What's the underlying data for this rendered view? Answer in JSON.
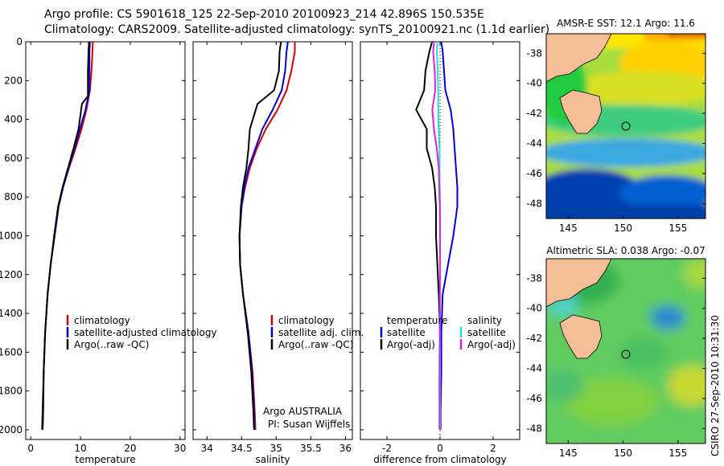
{
  "header": {
    "line1": "Argo profile: CS 5901618_125 22-Sep-2010 20100923_214 42.896S 150.535E",
    "line2": "Climatology: CARS2009. Satellite-adjusted climatology: synTS_20100921.nc (1.1d earlier)"
  },
  "side_stamp": "CSIRO 27-Sep-2010 10:31:30",
  "colors": {
    "climatology": "#dd0000",
    "satellite": "#0000dd",
    "argo": "#000000",
    "salinity_satellite": "#22dddd",
    "salinity_argo": "#dd22dd",
    "land": "#f4bf96"
  },
  "chart_data": [
    {
      "type": "line",
      "panel": "temperature",
      "xlabel": "temperature",
      "xlim": [
        -1,
        31
      ],
      "ylim": [
        2050,
        0
      ],
      "xticks": [
        "0",
        "10",
        "20",
        "30"
      ],
      "yticks": [
        "0",
        "200",
        "400",
        "600",
        "800",
        "1000",
        "1200",
        "1400",
        "1600",
        "1800",
        "2000"
      ],
      "legend": [
        "climatology",
        "satellite-adjusted climatology",
        "Argo(..raw -QC)"
      ],
      "series": [
        {
          "name": "climatology",
          "x": [
            12.5,
            12.4,
            12.2,
            11.9,
            11.2,
            10.2,
            9.0,
            7.7,
            6.5,
            5.6,
            4.8,
            4.0,
            3.4,
            2.9,
            2.6,
            2.5,
            2.4
          ],
          "y": [
            0,
            50,
            150,
            250,
            350,
            450,
            550,
            650,
            750,
            850,
            1000,
            1150,
            1300,
            1500,
            1700,
            1900,
            2000
          ]
        },
        {
          "name": "satellite-adjusted climatology",
          "x": [
            11.9,
            11.8,
            11.8,
            11.8,
            11.0,
            9.9,
            8.8,
            7.6,
            6.5,
            5.6,
            4.8,
            4.0,
            3.4,
            2.9,
            2.6,
            2.5,
            2.4
          ],
          "y": [
            0,
            50,
            150,
            250,
            350,
            450,
            550,
            650,
            750,
            850,
            1000,
            1150,
            1300,
            1500,
            1700,
            1900,
            2000
          ]
        },
        {
          "name": "Argo(..raw -QC)",
          "x": [
            11.7,
            11.6,
            11.5,
            11.5,
            10.3,
            9.6,
            8.6,
            7.5,
            6.4,
            5.5,
            4.7,
            4.0,
            3.4,
            2.9,
            2.6,
            2.4,
            2.3
          ],
          "y": [
            0,
            50,
            150,
            280,
            320,
            450,
            550,
            650,
            750,
            850,
            1000,
            1150,
            1300,
            1500,
            1700,
            1900,
            2000
          ]
        }
      ]
    },
    {
      "type": "line",
      "panel": "salinity",
      "xlabel": "salinity",
      "xlim": [
        33.8,
        36.1
      ],
      "ylim": [
        2050,
        0
      ],
      "xticks": [
        "34",
        "34.5",
        "35",
        "35.5",
        "36"
      ],
      "legend": [
        "climatology",
        "satellite adj. clim.",
        "Argo(..raw -QC)"
      ],
      "annotation": [
        "Argo AUSTRALIA",
        "PI: Susan Wijffels"
      ],
      "series": [
        {
          "name": "climatology",
          "x": [
            35.27,
            35.27,
            35.22,
            35.15,
            35.02,
            34.85,
            34.72,
            34.62,
            34.55,
            34.5,
            34.47,
            34.48,
            34.52,
            34.6,
            34.66,
            34.69,
            34.7
          ],
          "y": [
            0,
            50,
            150,
            250,
            350,
            450,
            550,
            650,
            750,
            850,
            1000,
            1150,
            1300,
            1500,
            1700,
            1900,
            2000
          ]
        },
        {
          "name": "satellite adj. clim.",
          "x": [
            35.17,
            35.15,
            35.13,
            35.08,
            34.95,
            34.8,
            34.7,
            34.6,
            34.54,
            34.5,
            34.47,
            34.48,
            34.52,
            34.6,
            34.65,
            34.68,
            34.69
          ],
          "y": [
            0,
            50,
            150,
            250,
            350,
            450,
            550,
            650,
            750,
            850,
            1000,
            1150,
            1300,
            1500,
            1700,
            1900,
            2000
          ]
        },
        {
          "name": "Argo(..raw -QC)",
          "x": [
            35.07,
            35.05,
            35.04,
            34.97,
            34.73,
            34.62,
            34.6,
            34.57,
            34.52,
            34.49,
            34.47,
            34.48,
            34.52,
            34.59,
            34.64,
            34.67,
            34.68
          ],
          "y": [
            0,
            50,
            150,
            250,
            320,
            450,
            550,
            650,
            750,
            850,
            1000,
            1150,
            1300,
            1500,
            1700,
            1900,
            2000
          ]
        }
      ]
    },
    {
      "type": "line",
      "panel": "difference",
      "xlabel": "difference from climatology",
      "xlim": [
        -3.0,
        3.0
      ],
      "ylim": [
        2050,
        0
      ],
      "xticks": [
        "-2",
        "0",
        "2"
      ],
      "legend_temperature_title": "temperature",
      "legend_salinity_title": "salinity",
      "legend_temperature": [
        "satellite",
        "Argo(-adj)"
      ],
      "legend_salinity": [
        "satellite",
        "Argo(-adj)"
      ],
      "series": [
        {
          "name": "temperature satellite",
          "x": [
            0.05,
            0.1,
            0.15,
            0.2,
            0.4,
            0.5,
            0.55,
            0.6,
            0.65,
            0.65,
            0.5,
            0.3,
            0.1,
            0.05,
            0.05,
            0.02,
            0.02
          ],
          "y": [
            0,
            50,
            150,
            250,
            350,
            450,
            550,
            650,
            750,
            850,
            1000,
            1150,
            1300,
            1500,
            1700,
            1900,
            2000
          ]
        },
        {
          "name": "temperature Argo(-adj)",
          "x": [
            -0.3,
            -0.4,
            -0.55,
            -0.6,
            -0.9,
            -0.5,
            -0.5,
            -0.3,
            -0.2,
            -0.15,
            -0.15,
            -0.1,
            -0.05,
            0.0,
            0.0,
            0.0,
            0.0
          ],
          "y": [
            0,
            50,
            150,
            250,
            350,
            450,
            550,
            650,
            750,
            850,
            1000,
            1150,
            1300,
            1500,
            1700,
            1900,
            2000
          ]
        },
        {
          "name": "salinity satellite",
          "x": [
            -0.1,
            -0.12,
            -0.09,
            -0.07,
            -0.07,
            -0.05,
            -0.02,
            -0.02,
            -0.01,
            0.0,
            0.0,
            0.0,
            0.0,
            0.0,
            0.0,
            0.0,
            0.0
          ],
          "y": [
            0,
            50,
            150,
            250,
            350,
            450,
            550,
            650,
            750,
            850,
            1000,
            1150,
            1300,
            1500,
            1700,
            1900,
            2000
          ]
        },
        {
          "name": "salinity Argo(-adj)",
          "x": [
            -0.22,
            -0.26,
            -0.2,
            -0.18,
            -0.29,
            -0.23,
            -0.12,
            -0.05,
            -0.03,
            -0.01,
            0.0,
            0.0,
            -0.01,
            -0.01,
            -0.02,
            -0.02,
            -0.02
          ],
          "y": [
            0,
            50,
            150,
            250,
            350,
            450,
            550,
            650,
            750,
            850,
            1000,
            1150,
            1300,
            1500,
            1700,
            1900,
            2000
          ]
        }
      ]
    },
    {
      "type": "heatmap",
      "panel": "sst_map",
      "title": "AMSR-E SST: 12.1 Argo: 11.6",
      "xlim": [
        143,
        157.5
      ],
      "ylim": [
        -49,
        -36.7
      ],
      "xticks": [
        "145",
        "150",
        "155"
      ],
      "yticks": [
        "-38",
        "-40",
        "-42",
        "-44",
        "-46",
        "-48"
      ],
      "argo_position": {
        "lon": 150.535,
        "lat": -42.896
      }
    },
    {
      "type": "heatmap",
      "panel": "sla_map",
      "title": "Altimetric SLA: 0.038 Argo: -0.07",
      "xlim": [
        143,
        157.5
      ],
      "ylim": [
        -49,
        -36.7
      ],
      "xticks": [
        "145",
        "150",
        "155"
      ],
      "yticks": [
        "-38",
        "-40",
        "-42",
        "-44",
        "-46",
        "-48"
      ],
      "argo_position": {
        "lon": 150.535,
        "lat": -42.896
      }
    }
  ]
}
